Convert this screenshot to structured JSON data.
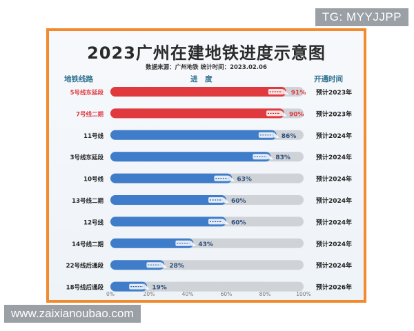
{
  "watermarks": {
    "top": "TG: MYYJJPP",
    "bottom": "www.zaixianoubao.com"
  },
  "chart_data": {
    "type": "bar",
    "orientation": "horizontal",
    "title": "2023广州在建地铁进度示意图",
    "subtitle": "数据来源：广州地铁 统计时间：2023.02.06",
    "column_headers": {
      "line": "地铁线路",
      "progress": "进　度",
      "open": "开通时间"
    },
    "xlim": [
      0,
      100
    ],
    "x_ticks": [
      "0%",
      "20%",
      "40%",
      "60%",
      "80%",
      "100%"
    ],
    "rows": [
      {
        "line": "5号线东延段",
        "value": 91,
        "label": "91%",
        "open": "预计2023年",
        "color": "#e0393e"
      },
      {
        "line": "7号线二期",
        "value": 90,
        "label": "90%",
        "open": "预计2023年",
        "color": "#e0393e"
      },
      {
        "line": "11号线",
        "value": 86,
        "label": "86%",
        "open": "预计2024年",
        "color": "#3f7cc9"
      },
      {
        "line": "3号线东延段",
        "value": 83,
        "label": "83%",
        "open": "预计2024年",
        "color": "#3f7cc9"
      },
      {
        "line": "10号线",
        "value": 63,
        "label": "63%",
        "open": "预计2024年",
        "color": "#3f7cc9"
      },
      {
        "line": "13号线二期",
        "value": 60,
        "label": "60%",
        "open": "预计2024年",
        "color": "#3f7cc9"
      },
      {
        "line": "12号线",
        "value": 60,
        "label": "60%",
        "open": "预计2024年",
        "color": "#3f7cc9"
      },
      {
        "line": "14号线二期",
        "value": 43,
        "label": "43%",
        "open": "预计2024年",
        "color": "#3f7cc9"
      },
      {
        "line": "22号线后通段",
        "value": 28,
        "label": "28%",
        "open": "预计2024年",
        "color": "#3f7cc9"
      },
      {
        "line": "18号线后通段",
        "value": 19,
        "label": "19%",
        "open": "预计2026年",
        "color": "#3f7cc9"
      }
    ],
    "red_label_color": "#e0393e",
    "blue_label_color": "#2d4f7a",
    "track_color": "#cfd3d8",
    "grid": false,
    "legend": "none"
  }
}
